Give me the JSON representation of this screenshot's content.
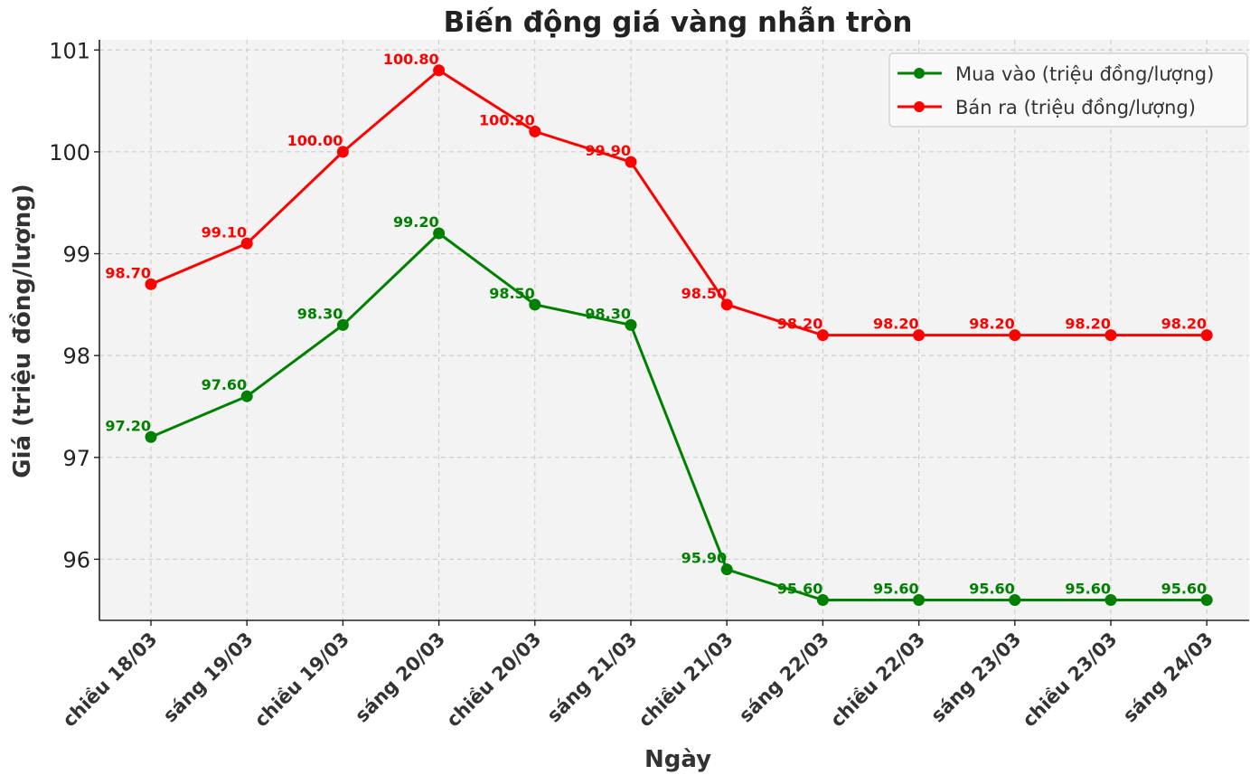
{
  "chart_data": {
    "type": "line",
    "title": "Biến động giá vàng nhẫn tròn",
    "xlabel": "Ngày",
    "ylabel": "Giá (triệu đồng/lượng)",
    "ylim": [
      95.4,
      101.1
    ],
    "yticks": [
      96,
      97,
      98,
      99,
      100,
      101
    ],
    "grid": true,
    "legend_position": "top-right",
    "categories": [
      "chiều 18/03",
      "sáng 19/03",
      "chiều 19/03",
      "sáng 20/03",
      "chiều 20/03",
      "sáng 21/03",
      "chiều 21/03",
      "sáng 22/03",
      "chiều 22/03",
      "sáng 23/03",
      "chiều 23/03",
      "sáng 24/03"
    ],
    "series": [
      {
        "name": "Mua vào (triệu đồng/lượng)",
        "color": "#008000",
        "values": [
          97.2,
          97.6,
          98.3,
          99.2,
          98.5,
          98.3,
          95.9,
          95.6,
          95.6,
          95.6,
          95.6,
          95.6
        ],
        "labels": [
          "97.20",
          "97.60",
          "98.30",
          "99.20",
          "98.50",
          "98.30",
          "95.90",
          "95.60",
          "95.60",
          "95.60",
          "95.60",
          "95.60"
        ]
      },
      {
        "name": "Bán ra (triệu đồng/lượng)",
        "color": "#ff0000",
        "values": [
          98.7,
          99.1,
          100.0,
          100.8,
          100.2,
          99.9,
          98.5,
          98.2,
          98.2,
          98.2,
          98.2,
          98.2
        ],
        "labels": [
          "98.70",
          "99.10",
          "100.00",
          "100.80",
          "100.20",
          "99.90",
          "98.50",
          "98.20",
          "98.20",
          "98.20",
          "98.20",
          "98.20"
        ]
      }
    ]
  }
}
